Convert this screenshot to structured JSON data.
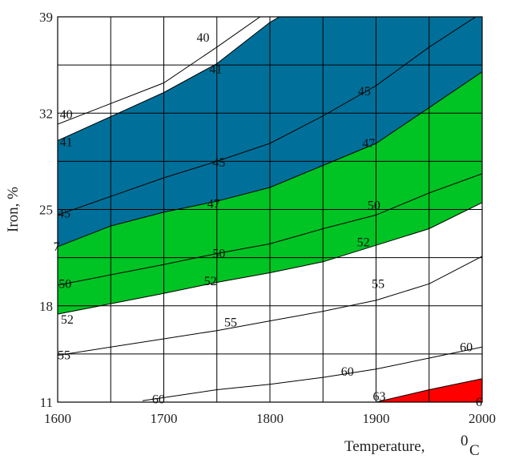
{
  "chart_data": {
    "type": "contour",
    "xlabel": "Temperature,",
    "xlabel_unit": "0C",
    "xlabel_unit_sup": "0",
    "xlabel_unit_main": "C",
    "ylabel": "Iron, %",
    "xlim": [
      1600,
      2000
    ],
    "ylim": [
      11,
      39
    ],
    "x_ticks": [
      1600,
      1700,
      1800,
      1900,
      2000
    ],
    "y_ticks": [
      11,
      18,
      25,
      32,
      39
    ],
    "x_tick_labels": [
      "1600",
      "1700",
      "1800",
      "1900",
      "2000"
    ],
    "y_tick_labels": [
      "11",
      "18",
      "25",
      "32",
      "39"
    ],
    "x_minor_grid": [
      1650,
      1750,
      1850,
      1950
    ],
    "y_minor_grid": [
      14.5,
      21.5,
      28.5,
      35.5
    ],
    "grid": true,
    "levels": [
      {
        "level": 40,
        "label": "40",
        "points": [
          [
            1600,
            31.2
          ],
          [
            1700,
            34.2
          ],
          [
            1750,
            36.8
          ],
          [
            1800,
            39.5
          ]
        ]
      },
      {
        "level": 41,
        "label": "41",
        "points": [
          [
            1600,
            30
          ],
          [
            1700,
            33.5
          ],
          [
            1750,
            35.6
          ],
          [
            1800,
            38.6
          ],
          [
            1820,
            39.5
          ]
        ]
      },
      {
        "level": 45,
        "label": "45",
        "points": [
          [
            1600,
            24.6
          ],
          [
            1700,
            27.3
          ],
          [
            1750,
            28.5
          ],
          [
            1800,
            29.8
          ],
          [
            1850,
            31.8
          ],
          [
            1900,
            34.0
          ],
          [
            1950,
            36.8
          ],
          [
            2000,
            39.3
          ]
        ]
      },
      {
        "level": 47,
        "label": "47",
        "points": [
          [
            1600,
            22.3
          ],
          [
            1650,
            23.8
          ],
          [
            1700,
            24.8
          ],
          [
            1750,
            25.6
          ],
          [
            1800,
            26.6
          ],
          [
            1850,
            28.2
          ],
          [
            1900,
            29.8
          ],
          [
            1950,
            32.4
          ],
          [
            2000,
            35.0
          ]
        ]
      },
      {
        "level": 50,
        "label": "50",
        "points": [
          [
            1600,
            19.5
          ],
          [
            1700,
            21.0
          ],
          [
            1750,
            21.8
          ],
          [
            1800,
            22.5
          ],
          [
            1850,
            23.6
          ],
          [
            1900,
            24.6
          ],
          [
            1950,
            26.2
          ],
          [
            2000,
            27.6
          ]
        ]
      },
      {
        "level": 52,
        "label": "52",
        "points": [
          [
            1600,
            17.4
          ],
          [
            1700,
            18.9
          ],
          [
            1750,
            19.7
          ],
          [
            1800,
            20.4
          ],
          [
            1850,
            21.2
          ],
          [
            1900,
            22.4
          ],
          [
            1950,
            23.6
          ],
          [
            2000,
            25.5
          ]
        ]
      },
      {
        "level": 55,
        "label": "55",
        "points": [
          [
            1600,
            14.4
          ],
          [
            1700,
            15.6
          ],
          [
            1750,
            16.2
          ],
          [
            1800,
            16.9
          ],
          [
            1850,
            17.6
          ],
          [
            1900,
            18.4
          ],
          [
            1950,
            19.6
          ],
          [
            2000,
            21.6
          ]
        ]
      },
      {
        "level": 60,
        "label": "60",
        "points": [
          [
            1680,
            11.1
          ],
          [
            1750,
            11.9
          ],
          [
            1800,
            12.3
          ],
          [
            1850,
            12.8
          ],
          [
            1900,
            13.4
          ],
          [
            1950,
            14.2
          ],
          [
            2000,
            15.0
          ]
        ]
      },
      {
        "level": 63,
        "label": "63",
        "points": [
          [
            1900,
            11.0
          ],
          [
            1950,
            11.9
          ],
          [
            2000,
            12.7
          ]
        ]
      }
    ],
    "bands": [
      {
        "name": "41-47",
        "color": "#00709a",
        "lower_level": 47,
        "upper_level": 41
      },
      {
        "name": "47-52",
        "color": "#00c324",
        "lower_level": 52,
        "upper_level": 47
      },
      {
        "name": "63+",
        "color": "#ff0000",
        "lower_level": 11,
        "upper_level": 63
      }
    ],
    "contour_labels": [
      {
        "text": "40",
        "x": 1737,
        "y": 37.5
      },
      {
        "text": "41",
        "x": 1749,
        "y": 35.2
      },
      {
        "text": "40",
        "x": 1608,
        "y": 31.9
      },
      {
        "text": "41",
        "x": 1608,
        "y": 29.9
      },
      {
        "text": "45",
        "x": 1889,
        "y": 33.6
      },
      {
        "text": "45",
        "x": 1752,
        "y": 28.4
      },
      {
        "text": "45",
        "x": 1606,
        "y": 24.7
      },
      {
        "text": "47",
        "x": 1893,
        "y": 29.8
      },
      {
        "text": "47",
        "x": 1747,
        "y": 25.4
      },
      {
        "text": "7",
        "x": 1599,
        "y": 22.3
      },
      {
        "text": "50",
        "x": 1898,
        "y": 25.3
      },
      {
        "text": "50",
        "x": 1752,
        "y": 21.8
      },
      {
        "text": "50",
        "x": 1607,
        "y": 19.6
      },
      {
        "text": "52",
        "x": 1888,
        "y": 22.6
      },
      {
        "text": "52",
        "x": 1744,
        "y": 19.8
      },
      {
        "text": "52",
        "x": 1609,
        "y": 17.0
      },
      {
        "text": "55",
        "x": 1902,
        "y": 19.6
      },
      {
        "text": "55",
        "x": 1763,
        "y": 16.8
      },
      {
        "text": "55",
        "x": 1606,
        "y": 14.4
      },
      {
        "text": "60",
        "x": 1985,
        "y": 15.0
      },
      {
        "text": "60",
        "x": 1873,
        "y": 13.2
      },
      {
        "text": "60",
        "x": 1695,
        "y": 11.2
      },
      {
        "text": "63",
        "x": 1903,
        "y": 11.4
      },
      {
        "text": "6",
        "x": 1997,
        "y": 11.0
      }
    ]
  }
}
